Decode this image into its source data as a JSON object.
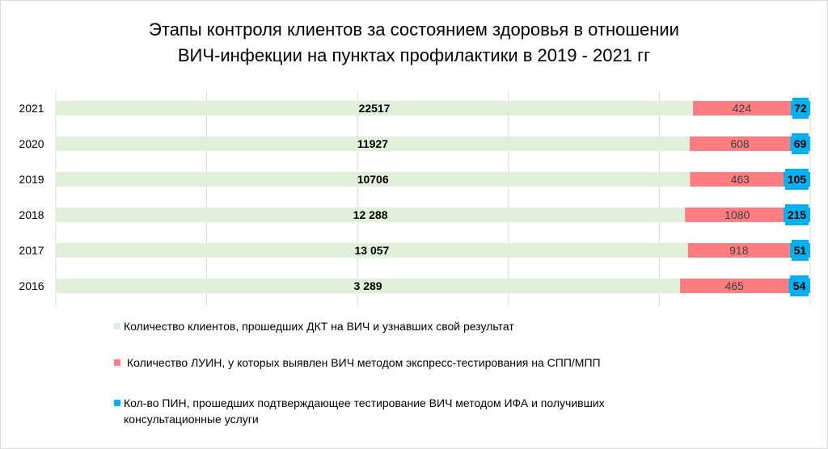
{
  "chart_data": {
    "type": "bar",
    "stacked": "100%",
    "orientation": "horizontal",
    "title_lines": [
      "Этапы контроля клиентов за состоянием здоровья в отношении",
      "ВИЧ-инфекции на пунктах профилактики в 2019 - 2021 гг"
    ],
    "categories": [
      "2021",
      "2020",
      "2019",
      "2018",
      "2017",
      "2016"
    ],
    "series": [
      {
        "name": "Количество клиентов, прошедших ДКТ на ВИЧ и узнавших свой результат",
        "color": "#e2efda",
        "values": [
          22517,
          11927,
          10706,
          12288,
          13057,
          3289
        ],
        "labels": [
          "22517",
          "11927",
          "10706",
          "12 288",
          "13 057",
          "3 289"
        ]
      },
      {
        "name": "Количество ЛУИН, у которых выявлен ВИЧ методом экспресс-тестирования на СПП/МПП",
        "color": "#ff7c80",
        "values": [
          424,
          608,
          463,
          1080,
          918,
          465
        ],
        "labels": [
          "424",
          "608",
          "463",
          "1080",
          "918",
          "465"
        ]
      },
      {
        "name": "Кол-во ПИН, прошедших подтверждающее тестирование  ВИЧ методом ИФА и получивших консультационные услуги",
        "color": "#00b0f0",
        "values": [
          72,
          69,
          105,
          215,
          51,
          54
        ],
        "labels": [
          "72",
          "69",
          "105",
          "215",
          "51",
          "54"
        ]
      }
    ],
    "grid": true,
    "legend": "bottom"
  }
}
